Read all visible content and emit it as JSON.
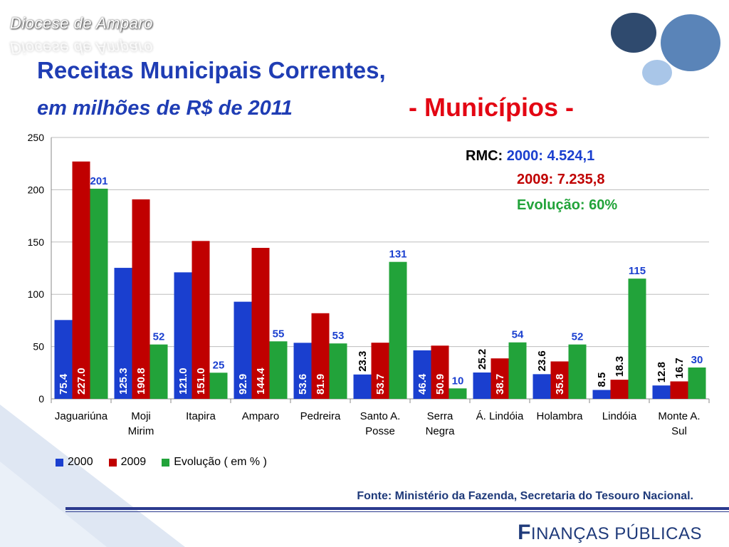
{
  "header": {
    "diocese": "Diocese de Amparo",
    "title_line1": "Receitas Municipais Correntes,",
    "title_line2": "em milhões de R$ de 2011",
    "title_line3": "- Municípios -"
  },
  "rmc": {
    "label": "RMC:",
    "line2000": "2000: 4.524,1",
    "line2009": "2009: 7.235,8",
    "evolucao": "Evolução: 60%"
  },
  "colors": {
    "series_2000": "#1a3fcf",
    "series_2009": "#c00000",
    "series_evol": "#22a33a",
    "title_blue": "#1f3db4",
    "accent_red": "#e30613"
  },
  "chart_data": {
    "type": "bar",
    "categories": [
      "Jaguariúna",
      "Moji Mirim",
      "Itapira",
      "Amparo",
      "Pedreira",
      "Santo A. Posse",
      "Serra Negra",
      "Á. Lindóia",
      "Holambra",
      "Lindóia",
      "Monte A. Sul"
    ],
    "category_lines": [
      [
        "Jaguariúna"
      ],
      [
        "Moji",
        "Mirim"
      ],
      [
        "Itapira"
      ],
      [
        "Amparo"
      ],
      [
        "Pedreira"
      ],
      [
        "Santo A.",
        "Posse"
      ],
      [
        "Serra",
        "Negra"
      ],
      [
        "Á. Lindóia"
      ],
      [
        "Holambra"
      ],
      [
        "Lindóia"
      ],
      [
        "Monte A.",
        "Sul"
      ]
    ],
    "series": [
      {
        "name": "2000",
        "values": [
          75.4,
          125.3,
          121.0,
          92.9,
          53.6,
          23.3,
          46.4,
          25.2,
          23.6,
          8.5,
          12.8
        ],
        "labels": [
          "75.4",
          "125.3",
          "121.0",
          "92.9",
          "53.6",
          "23.3",
          "46.4",
          "25.2",
          "23.6",
          "8.5",
          "12.8"
        ]
      },
      {
        "name": "2009",
        "values": [
          227.0,
          190.8,
          151.0,
          144.4,
          81.9,
          53.7,
          50.9,
          38.7,
          35.8,
          18.3,
          16.7
        ],
        "labels": [
          "227.0",
          "190.8",
          "151.0",
          "144.4",
          "81.9",
          "53.7",
          "50.9",
          "38.7",
          "35.8",
          "18.3",
          "16.7"
        ]
      },
      {
        "name": "Evolução ( em % )",
        "values": [
          201,
          52,
          25,
          55,
          53,
          131,
          10,
          54,
          52,
          115,
          30
        ],
        "labels": [
          "201",
          "52",
          "25",
          "55",
          "53",
          "131",
          "10",
          "54",
          "52",
          "115",
          "30"
        ]
      }
    ],
    "ylim": [
      0,
      250
    ],
    "yticks": [
      0,
      50,
      100,
      150,
      200,
      250
    ],
    "grid": true,
    "legend": "bottom-left"
  },
  "footer": {
    "fonte": "Fonte: Ministério da Fazenda, Secretaria do Tesouro Nacional.",
    "brand_initial": "F",
    "brand_rest": "INANÇAS PÚBLICAS"
  }
}
